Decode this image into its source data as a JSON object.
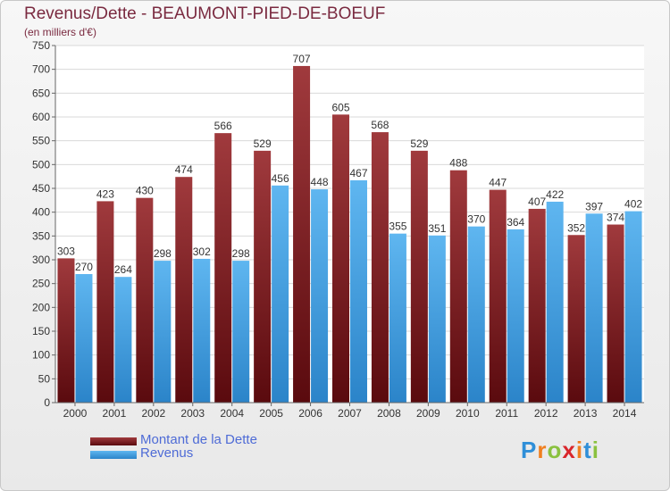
{
  "chart_data": {
    "type": "bar",
    "title": "Revenus/Dette - BEAUMONT-PIED-DE-BOEUF",
    "subtitle": "(en milliers d'€)",
    "categories": [
      "2000",
      "2001",
      "2002",
      "2003",
      "2004",
      "2005",
      "2006",
      "2007",
      "2008",
      "2009",
      "2010",
      "2011",
      "2012",
      "2013",
      "2014"
    ],
    "series": [
      {
        "name": "Montant de la Dette",
        "color": "#7b1f23",
        "values": [
          303,
          423,
          430,
          474,
          566,
          529,
          707,
          605,
          568,
          529,
          488,
          447,
          407,
          352,
          374
        ]
      },
      {
        "name": "Revenus",
        "color": "#3f9be0",
        "values": [
          270,
          264,
          298,
          302,
          298,
          456,
          448,
          467,
          355,
          351,
          370,
          364,
          422,
          397,
          402
        ]
      }
    ],
    "ylim": [
      0,
      750
    ],
    "yticks": [
      0,
      50,
      100,
      150,
      200,
      250,
      300,
      350,
      400,
      450,
      500,
      550,
      600,
      650,
      700,
      750
    ],
    "grid": true,
    "legend_position": "bottom-left"
  },
  "logo": {
    "letters": [
      {
        "char": "P",
        "color": "#2f8fd8"
      },
      {
        "char": "r",
        "color": "#f07f1f"
      },
      {
        "char": "o",
        "color": "#8ac13f"
      },
      {
        "char": "x",
        "color": "#d9262b"
      },
      {
        "char": "i",
        "color": "#f07f1f"
      },
      {
        "char": "t",
        "color": "#2f8fd8"
      },
      {
        "char": "i",
        "color": "#8ac13f"
      }
    ]
  }
}
